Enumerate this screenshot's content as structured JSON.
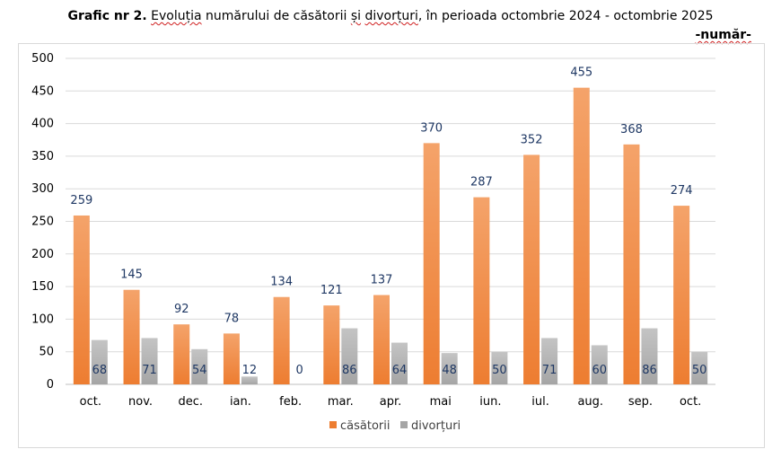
{
  "title": {
    "prefix": "Grafic nr 2.",
    "w1": "Evoluția",
    "w2": " numărului de căsătorii ",
    "w3": "și",
    "w4": " ",
    "w5": "divorțuri",
    "w6": ", în perioada octombrie 2024 - octombrie 2025"
  },
  "unit_label": "-număr-",
  "colors": {
    "casatorii": "#ed7d31",
    "divorturi": "#a5a5a5",
    "grid": "#d9d9d9",
    "label": "#1f3864"
  },
  "chart_data": {
    "type": "bar",
    "title": "Grafic nr 2. Evoluția numărului de căsătorii și divorțuri, în perioada octombrie 2024 - octombrie 2025",
    "ylabel": "-număr-",
    "xlabel": "",
    "ylim": [
      0,
      500
    ],
    "yticks": [
      0,
      50,
      100,
      150,
      200,
      250,
      300,
      350,
      400,
      450,
      500
    ],
    "grid": true,
    "legend_position": "bottom",
    "categories": [
      "oct.",
      "nov.",
      "dec.",
      "ian.",
      "feb.",
      "mar.",
      "apr.",
      "mai",
      "iun.",
      "iul.",
      "aug.",
      "sep.",
      "oct."
    ],
    "series": [
      {
        "name": "căsătorii",
        "values": [
          259,
          145,
          92,
          78,
          134,
          121,
          137,
          370,
          287,
          352,
          455,
          368,
          274
        ]
      },
      {
        "name": "divorțuri",
        "values": [
          68,
          71,
          54,
          12,
          0,
          86,
          64,
          48,
          50,
          71,
          60,
          86,
          50
        ]
      }
    ]
  }
}
